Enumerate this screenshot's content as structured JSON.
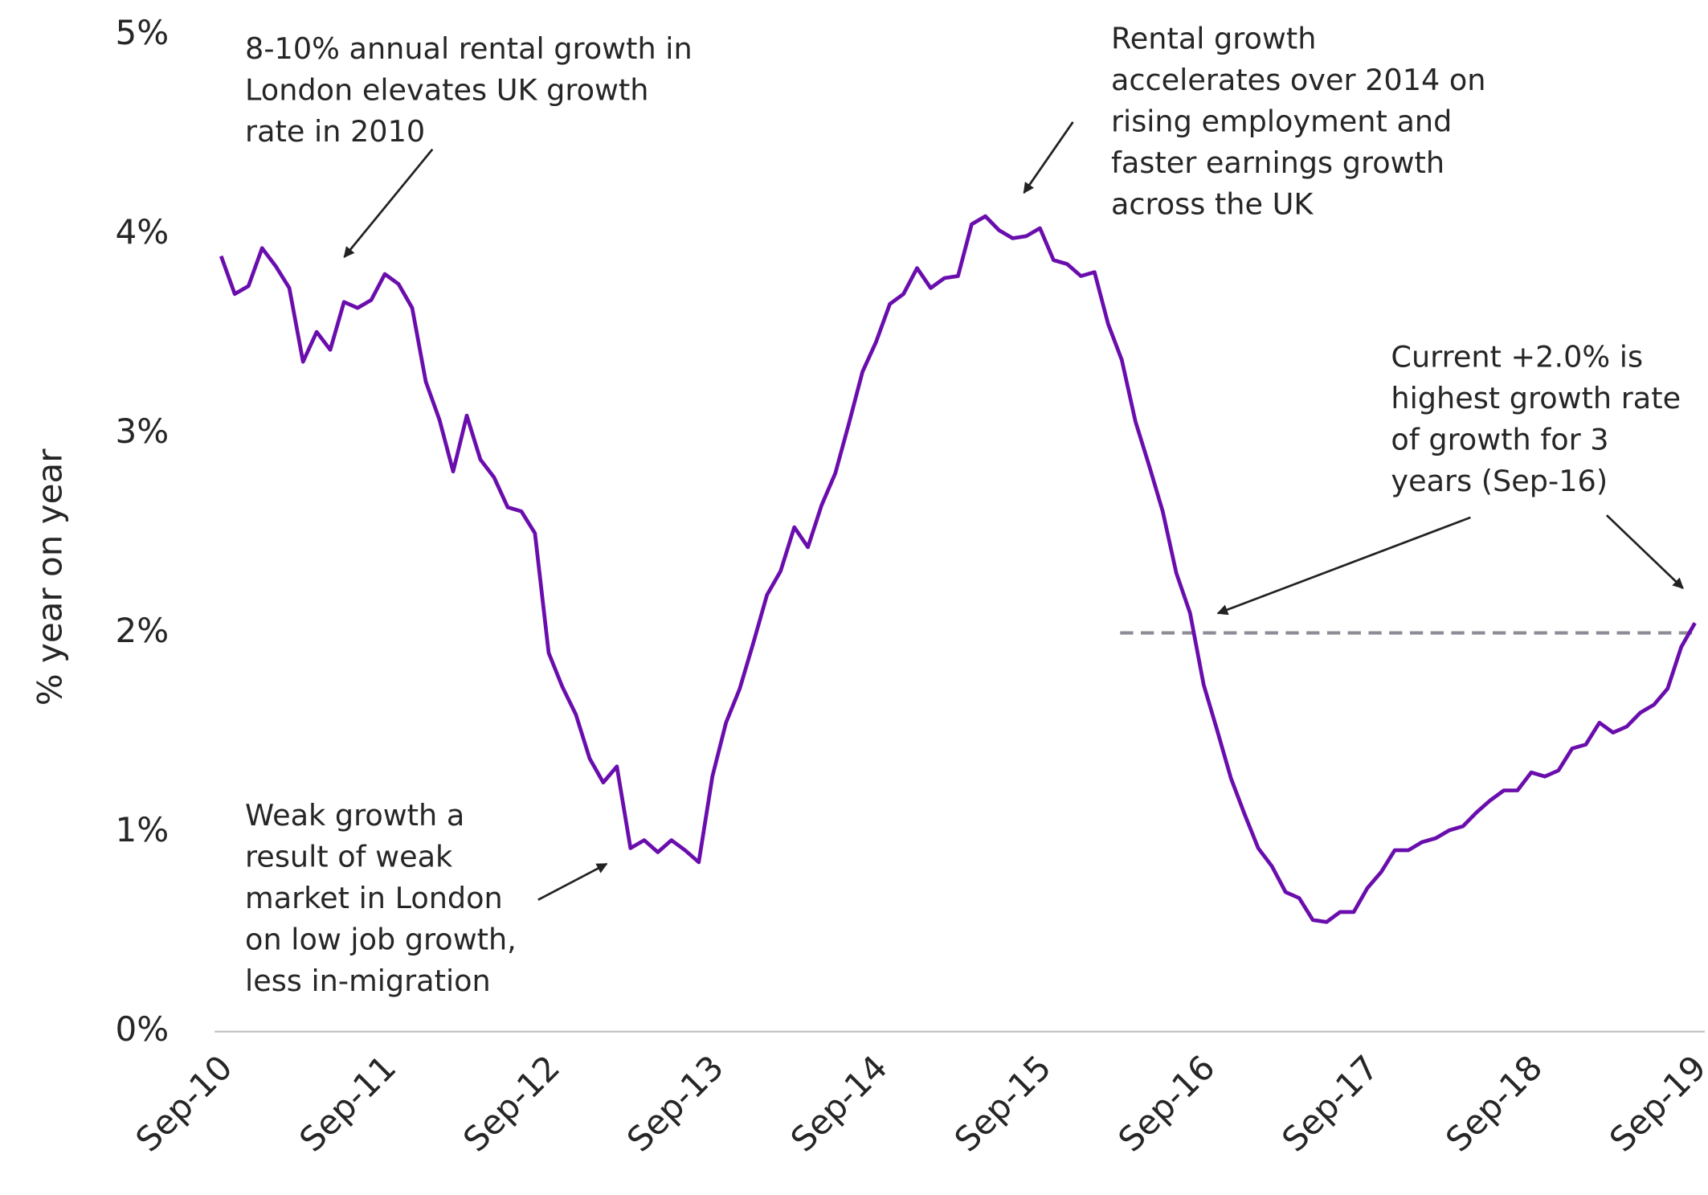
{
  "chart_data": {
    "type": "line",
    "y_label": "% year on year",
    "categories": [
      "Sep-10",
      null,
      null,
      null,
      null,
      null,
      null,
      null,
      null,
      null,
      null,
      null,
      "Sep-11",
      null,
      null,
      null,
      null,
      null,
      null,
      null,
      null,
      null,
      null,
      null,
      "Sep-12",
      null,
      null,
      null,
      null,
      null,
      null,
      null,
      null,
      null,
      null,
      null,
      "Sep-13",
      null,
      null,
      null,
      null,
      null,
      null,
      null,
      null,
      null,
      null,
      null,
      "Sep-14",
      null,
      null,
      null,
      null,
      null,
      null,
      null,
      null,
      null,
      null,
      null,
      "Sep-15",
      null,
      null,
      null,
      null,
      null,
      null,
      null,
      null,
      null,
      null,
      null,
      "Sep-16",
      null,
      null,
      null,
      null,
      null,
      null,
      null,
      null,
      null,
      null,
      null,
      "Sep-17",
      null,
      null,
      null,
      null,
      null,
      null,
      null,
      null,
      null,
      null,
      null,
      "Sep-18",
      null,
      null,
      null,
      null,
      null,
      null,
      null,
      null,
      null,
      null,
      null,
      "Sep-19"
    ],
    "series": [
      {
        "color": "#6a0dad",
        "values": [
          3.89,
          3.7,
          3.74,
          3.93,
          3.84,
          3.73,
          3.36,
          3.51,
          3.42,
          3.66,
          3.63,
          3.67,
          3.8,
          3.75,
          3.63,
          3.26,
          3.07,
          2.81,
          3.09,
          2.87,
          2.78,
          2.63,
          2.61,
          2.5,
          1.9,
          1.73,
          1.59,
          1.37,
          1.25,
          1.33,
          0.92,
          0.96,
          0.9,
          0.96,
          0.91,
          0.85,
          1.28,
          1.55,
          1.72,
          1.95,
          2.19,
          2.31,
          2.53,
          2.43,
          2.64,
          2.8,
          3.05,
          3.31,
          3.46,
          3.65,
          3.7,
          3.83,
          3.73,
          3.78,
          3.79,
          4.05,
          4.09,
          4.02,
          3.98,
          3.99,
          4.03,
          3.87,
          3.85,
          3.79,
          3.81,
          3.55,
          3.37,
          3.06,
          2.84,
          2.61,
          2.3,
          2.1,
          1.74,
          1.51,
          1.27,
          1.09,
          0.92,
          0.83,
          0.7,
          0.67,
          0.56,
          0.55,
          0.6,
          0.6,
          0.72,
          0.8,
          0.91,
          0.91,
          0.95,
          0.97,
          1.01,
          1.03,
          1.1,
          1.16,
          1.21,
          1.21,
          1.3,
          1.28,
          1.31,
          1.42,
          1.44,
          1.55,
          1.5,
          1.53,
          1.6,
          1.64,
          1.72,
          1.93,
          2.05
        ]
      }
    ],
    "reference_line": {
      "value": 2.0,
      "color": "#8e8a96"
    },
    "ylim": [
      0,
      5
    ],
    "yticks": [
      {
        "value": 0,
        "label": "0%"
      },
      {
        "value": 1,
        "label": "1%"
      },
      {
        "value": 2,
        "label": "2%"
      },
      {
        "value": 3,
        "label": "3%"
      },
      {
        "value": 4,
        "label": "4%"
      },
      {
        "value": 5,
        "label": "5%"
      }
    ],
    "grid": false,
    "annotations": [
      {
        "lines": [
          "8-10% annual rental growth in",
          "London elevates UK growth",
          "rate in 2010"
        ]
      },
      {
        "lines": [
          "Rental growth",
          "accelerates over 2014 on",
          "rising employment and",
          "faster earnings growth",
          "across the UK"
        ]
      },
      {
        "lines": [
          "Current +2.0% is",
          "highest growth rate",
          "of growth for 3",
          "years (Sep-16)"
        ]
      },
      {
        "lines": [
          "Weak growth a",
          "result of weak",
          "market in London",
          "on low job growth,",
          "less in-migration"
        ]
      }
    ]
  }
}
